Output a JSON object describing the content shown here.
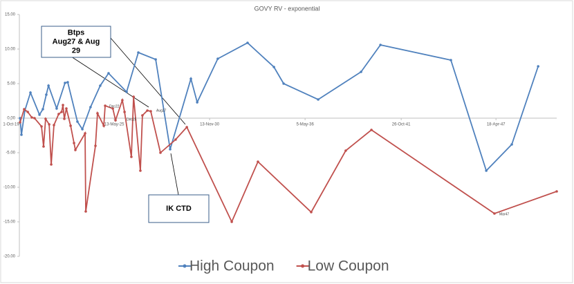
{
  "chart_data": {
    "type": "line",
    "title": "GOVY RV - exponential",
    "xlim": [
      2019.75,
      2051.82
    ],
    "xticks": [
      {
        "value": 2019.75,
        "label": "1-Oct-19"
      },
      {
        "value": 2025.81,
        "label": "13-May-25"
      },
      {
        "value": 2031.42,
        "label": "13-Nov-30"
      },
      {
        "value": 2037.03,
        "label": "5-May-36"
      },
      {
        "value": 2042.68,
        "label": "26-Oct-41"
      },
      {
        "value": 2048.25,
        "label": "18-Apr-47"
      }
    ],
    "ylim": [
      -20,
      15
    ],
    "yticks": [
      {
        "value": 15,
        "label": "15.00"
      },
      {
        "value": 10,
        "label": "10.00"
      },
      {
        "value": 5,
        "label": "5.00"
      },
      {
        "value": 0,
        "label": "0.00"
      },
      {
        "value": -5,
        "label": "-5.00"
      },
      {
        "value": -10,
        "label": "-10.00"
      },
      {
        "value": -15,
        "label": "-15.00"
      },
      {
        "value": -20,
        "label": "-20.00"
      }
    ],
    "series": [
      {
        "name": "High Coupon",
        "color": "#4f81bd",
        "x": [
          2020.28,
          2020.36,
          2020.56,
          2020.89,
          2021.42,
          2021.62,
          2021.82,
          2021.95,
          2022.43,
          2022.92,
          2023.08,
          2023.65,
          2023.94,
          2024.42,
          2024.99,
          2025.48,
          2026.54,
          2027.23,
          2028.25,
          2029.1,
          2030.32,
          2030.69,
          2031.9,
          2033.65,
          2035.2,
          2035.77,
          2037.8,
          2040.32,
          2041.46,
          2045.6,
          2047.68,
          2049.18,
          2050.73
        ],
        "values": [
          0.0,
          -2.4,
          1.1,
          3.7,
          0.5,
          1.3,
          3.4,
          4.7,
          1.4,
          5.1,
          5.2,
          -0.5,
          -1.6,
          1.6,
          4.7,
          6.5,
          3.8,
          9.5,
          8.5,
          -4.5,
          5.7,
          2.3,
          8.6,
          10.9,
          7.4,
          5.0,
          2.7,
          6.7,
          10.6,
          8.4,
          -7.6,
          -3.8,
          7.5
        ]
      },
      {
        "name": "Low Coupon",
        "color": "#c0504d",
        "x": [
          2020.28,
          2020.52,
          2020.73,
          2020.97,
          2021.13,
          2021.54,
          2021.66,
          2021.78,
          2021.99,
          2022.11,
          2022.27,
          2022.55,
          2022.72,
          2022.8,
          2022.88,
          2023.0,
          2023.25,
          2023.45,
          2023.53,
          2024.1,
          2024.14,
          2024.71,
          2024.83,
          2025.2,
          2025.28,
          2025.73,
          2025.89,
          2026.29,
          2026.42,
          2026.82,
          2026.95,
          2027.35,
          2027.47,
          2027.76,
          2027.96,
          2028.53,
          2029.42,
          2030.08,
          2032.72,
          2034.26,
          2037.39,
          2039.42,
          2040.93,
          2048.16,
          2051.82
        ],
        "values": [
          -0.6,
          1.3,
          0.9,
          0.1,
          0.0,
          -1.2,
          -4.1,
          -0.1,
          -0.9,
          -6.7,
          -1.0,
          0.6,
          0.9,
          1.9,
          -0.1,
          1.4,
          -1.1,
          -3.6,
          -4.6,
          -2.2,
          -13.5,
          -4.0,
          0.7,
          -1.1,
          1.8,
          1.4,
          -0.3,
          2.6,
          0.9,
          -5.6,
          3.1,
          -7.6,
          0.4,
          1.1,
          1.0,
          -5.0,
          -3.1,
          -1.3,
          -15.0,
          -6.3,
          -13.6,
          -4.7,
          -1.7,
          -13.8,
          -10.6
        ]
      }
    ],
    "point_labels": [
      "Dec22",
      "Dec25",
      "Aug27",
      "Mar47"
    ],
    "callouts": [
      {
        "lines": [
          "Btps",
          "Aug27 & Aug",
          "29"
        ]
      },
      {
        "lines": [
          "IK CTD"
        ]
      }
    ]
  }
}
